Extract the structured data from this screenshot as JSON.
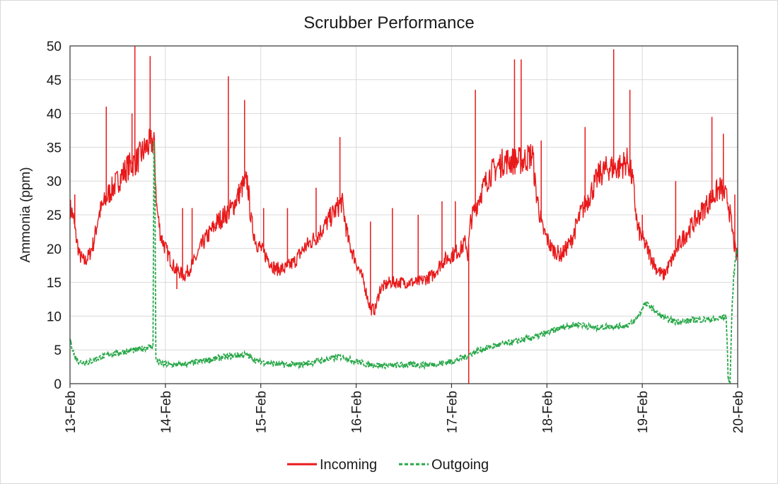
{
  "chart_data": {
    "type": "line",
    "title": "Scrubber Performance",
    "xlabel": "",
    "ylabel": "Ammonia (ppm)",
    "ylim": [
      0,
      50
    ],
    "yticks": [
      0,
      5,
      10,
      15,
      20,
      25,
      30,
      35,
      40,
      45,
      50
    ],
    "x_tick_labels": [
      "13-Feb",
      "14-Feb",
      "15-Feb",
      "16-Feb",
      "17-Feb",
      "18-Feb",
      "19-Feb",
      "20-Feb"
    ],
    "x_unit": "days since 13-Feb (approximate readout)",
    "grid": true,
    "legend_position": "bottom",
    "series": [
      {
        "name": "Incoming",
        "color": "#e8191a",
        "style": "solid",
        "points": [
          [
            0.0,
            26
          ],
          [
            0.03,
            25
          ],
          [
            0.06,
            22
          ],
          [
            0.1,
            19
          ],
          [
            0.15,
            18
          ],
          [
            0.2,
            19
          ],
          [
            0.25,
            21
          ],
          [
            0.3,
            25
          ],
          [
            0.4,
            28
          ],
          [
            0.5,
            30
          ],
          [
            0.6,
            32
          ],
          [
            0.7,
            33
          ],
          [
            0.8,
            35
          ],
          [
            0.88,
            36
          ],
          [
            0.91,
            26
          ],
          [
            0.95,
            22
          ],
          [
            1.0,
            20
          ],
          [
            1.1,
            17
          ],
          [
            1.2,
            16
          ],
          [
            1.3,
            18
          ],
          [
            1.4,
            21
          ],
          [
            1.55,
            24
          ],
          [
            1.7,
            26
          ],
          [
            1.8,
            29
          ],
          [
            1.86,
            30
          ],
          [
            1.9,
            24
          ],
          [
            1.95,
            21
          ],
          [
            2.05,
            19
          ],
          [
            2.15,
            17
          ],
          [
            2.25,
            17
          ],
          [
            2.35,
            18
          ],
          [
            2.45,
            20
          ],
          [
            2.6,
            22
          ],
          [
            2.75,
            25
          ],
          [
            2.85,
            27
          ],
          [
            2.92,
            21
          ],
          [
            3.0,
            18
          ],
          [
            3.08,
            15
          ],
          [
            3.15,
            11
          ],
          [
            3.2,
            11
          ],
          [
            3.25,
            14
          ],
          [
            3.35,
            15
          ],
          [
            3.5,
            15
          ],
          [
            3.65,
            15
          ],
          [
            3.8,
            16
          ],
          [
            3.9,
            18
          ],
          [
            4.0,
            19
          ],
          [
            4.1,
            20
          ],
          [
            4.15,
            21
          ],
          [
            4.17,
            19
          ],
          [
            4.2,
            24
          ],
          [
            4.3,
            28
          ],
          [
            4.4,
            31
          ],
          [
            4.55,
            33
          ],
          [
            4.65,
            33
          ],
          [
            4.75,
            33
          ],
          [
            4.85,
            34
          ],
          [
            4.88,
            29
          ],
          [
            4.95,
            23
          ],
          [
            5.05,
            20
          ],
          [
            5.15,
            19
          ],
          [
            5.25,
            21
          ],
          [
            5.35,
            25
          ],
          [
            5.45,
            28
          ],
          [
            5.55,
            31
          ],
          [
            5.65,
            32
          ],
          [
            5.75,
            32
          ],
          [
            5.85,
            33
          ],
          [
            5.9,
            30
          ],
          [
            5.95,
            23
          ],
          [
            6.05,
            20
          ],
          [
            6.15,
            17
          ],
          [
            6.22,
            16
          ],
          [
            6.3,
            18
          ],
          [
            6.4,
            21
          ],
          [
            6.55,
            24
          ],
          [
            6.7,
            27
          ],
          [
            6.82,
            29
          ],
          [
            6.9,
            27
          ],
          [
            6.95,
            22
          ],
          [
            6.98,
            19
          ],
          [
            7.0,
            19
          ]
        ],
        "spikes": [
          [
            0.05,
            28
          ],
          [
            0.38,
            41
          ],
          [
            0.65,
            40
          ],
          [
            0.68,
            50
          ],
          [
            0.84,
            48.5
          ],
          [
            1.12,
            14
          ],
          [
            1.18,
            26
          ],
          [
            1.28,
            26
          ],
          [
            1.66,
            45.5
          ],
          [
            1.83,
            42
          ],
          [
            2.03,
            26
          ],
          [
            2.28,
            26
          ],
          [
            2.58,
            29
          ],
          [
            2.83,
            36.5
          ],
          [
            3.15,
            24
          ],
          [
            3.38,
            26
          ],
          [
            3.65,
            25
          ],
          [
            3.9,
            27
          ],
          [
            4.04,
            27
          ],
          [
            4.18,
            0
          ],
          [
            4.25,
            43.5
          ],
          [
            4.66,
            48
          ],
          [
            4.73,
            48
          ],
          [
            4.94,
            36
          ],
          [
            5.4,
            38
          ],
          [
            5.7,
            49.5
          ],
          [
            5.87,
            43.5
          ],
          [
            6.0,
            25
          ],
          [
            6.35,
            30
          ],
          [
            6.73,
            39.5
          ],
          [
            6.85,
            37
          ],
          [
            6.97,
            28
          ]
        ]
      },
      {
        "name": "Outgoing",
        "color": "#2aa84a",
        "style": "dashed",
        "points": [
          [
            0.0,
            6.5
          ],
          [
            0.05,
            4
          ],
          [
            0.1,
            3.2
          ],
          [
            0.2,
            3.2
          ],
          [
            0.3,
            3.8
          ],
          [
            0.4,
            4.3
          ],
          [
            0.55,
            4.7
          ],
          [
            0.7,
            5.0
          ],
          [
            0.85,
            5.5
          ],
          [
            0.87,
            5.3
          ],
          [
            0.88,
            36
          ],
          [
            0.89,
            30
          ],
          [
            0.9,
            3.5
          ],
          [
            0.95,
            3.0
          ],
          [
            1.05,
            2.8
          ],
          [
            1.15,
            2.8
          ],
          [
            1.3,
            3.1
          ],
          [
            1.45,
            3.5
          ],
          [
            1.6,
            3.9
          ],
          [
            1.75,
            4.2
          ],
          [
            1.85,
            4.3
          ],
          [
            1.95,
            3.4
          ],
          [
            2.1,
            3.0
          ],
          [
            2.25,
            2.8
          ],
          [
            2.4,
            2.8
          ],
          [
            2.55,
            3.2
          ],
          [
            2.7,
            3.6
          ],
          [
            2.85,
            4.0
          ],
          [
            2.95,
            3.5
          ],
          [
            3.1,
            2.9
          ],
          [
            3.25,
            2.7
          ],
          [
            3.4,
            2.7
          ],
          [
            3.55,
            2.8
          ],
          [
            3.7,
            2.8
          ],
          [
            3.85,
            2.9
          ],
          [
            4.0,
            3.3
          ],
          [
            4.15,
            4.0
          ],
          [
            4.18,
            4.3
          ],
          [
            4.3,
            5.0
          ],
          [
            4.45,
            5.6
          ],
          [
            4.6,
            6.0
          ],
          [
            4.75,
            6.5
          ],
          [
            4.9,
            7.0
          ],
          [
            5.05,
            7.8
          ],
          [
            5.2,
            8.5
          ],
          [
            5.35,
            8.8
          ],
          [
            5.5,
            8.2
          ],
          [
            5.65,
            8.5
          ],
          [
            5.8,
            8.5
          ],
          [
            5.9,
            9.0
          ],
          [
            5.98,
            10.5
          ],
          [
            6.02,
            11.8
          ],
          [
            6.08,
            11.5
          ],
          [
            6.15,
            10.5
          ],
          [
            6.25,
            9.6
          ],
          [
            6.35,
            9.2
          ],
          [
            6.45,
            9.2
          ],
          [
            6.55,
            9.5
          ],
          [
            6.65,
            9.5
          ],
          [
            6.75,
            9.5
          ],
          [
            6.85,
            9.8
          ],
          [
            6.88,
            10.0
          ],
          [
            6.9,
            1
          ],
          [
            6.92,
            0
          ],
          [
            6.94,
            11
          ],
          [
            6.96,
            16
          ],
          [
            6.98,
            19
          ],
          [
            7.0,
            20
          ]
        ]
      }
    ]
  }
}
